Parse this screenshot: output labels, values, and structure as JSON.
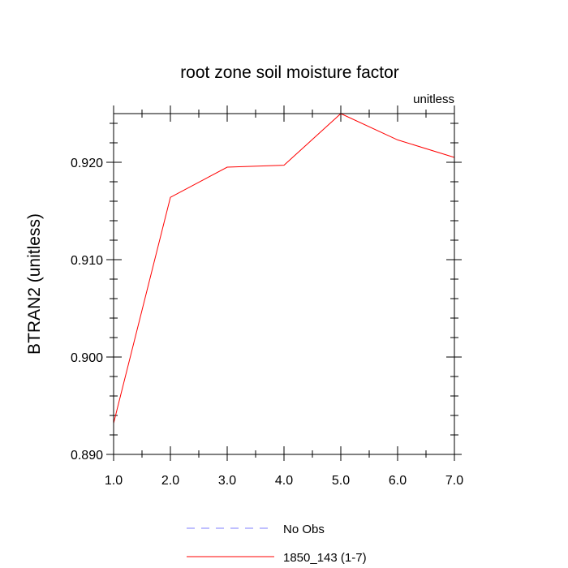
{
  "chart_data": {
    "type": "line",
    "title": "root zone soil moisture factor",
    "units_label": "unitless",
    "xlabel": "",
    "ylabel": "BTRAN2  (unitless)",
    "xlim": [
      1.0,
      7.0
    ],
    "ylim": [
      0.89,
      0.925
    ],
    "xticks": [
      "1.0",
      "2.0",
      "3.0",
      "4.0",
      "5.0",
      "6.0",
      "7.0"
    ],
    "xtick_values": [
      1,
      2,
      3,
      4,
      5,
      6,
      7
    ],
    "yticks": [
      "0.890",
      "0.900",
      "0.910",
      "0.920"
    ],
    "ytick_values": [
      0.89,
      0.9,
      0.91,
      0.92
    ],
    "series": [
      {
        "name": "1850_143 (1-7)",
        "color": "#ff0000",
        "x": [
          1,
          2,
          3,
          4,
          5,
          6,
          7
        ],
        "y": [
          0.8932,
          0.9164,
          0.9195,
          0.9197,
          0.925,
          0.9223,
          0.9205
        ]
      }
    ],
    "legend": [
      {
        "label": "No Obs",
        "color": "#7f7fff",
        "style": "dashed"
      },
      {
        "label": "1850_143 (1-7)",
        "color": "#ff0000",
        "style": "solid"
      }
    ]
  }
}
